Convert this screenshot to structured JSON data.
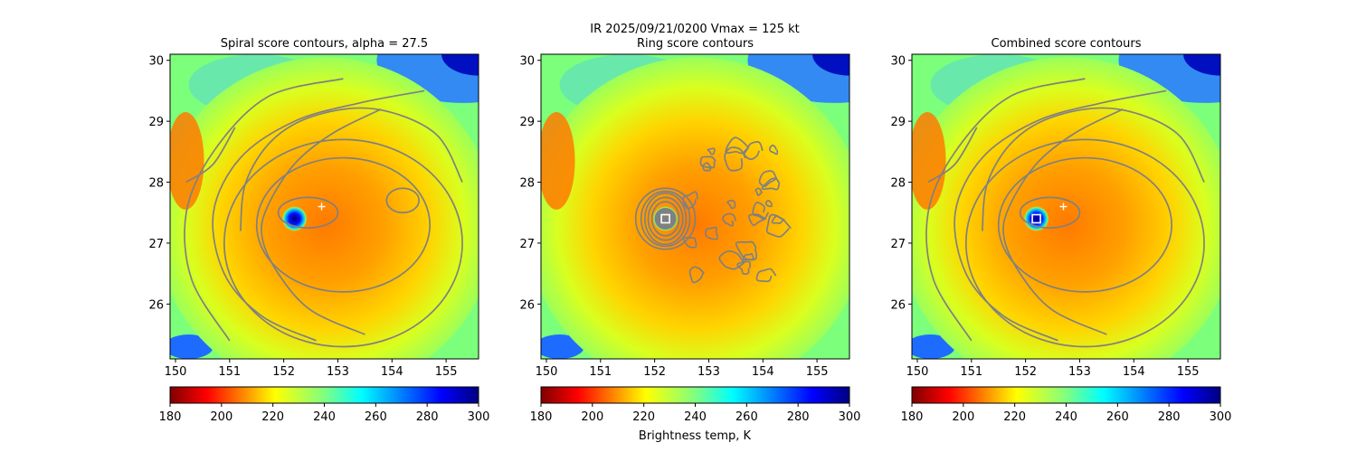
{
  "figure": {
    "suptitle": "IR  2025/09/21/0200    Vmax = 125 kt",
    "colorbar_label": "Brightness temp, K"
  },
  "chart_data": [
    {
      "type": "heatmap",
      "title": "Spiral score contours, alpha = 27.5",
      "xlim": [
        149.9,
        155.6
      ],
      "ylim": [
        25.1,
        30.1
      ],
      "xticks": [
        150,
        151,
        152,
        153,
        154,
        155
      ],
      "yticks": [
        26,
        27,
        28,
        29,
        30
      ],
      "colormap": "jet_r",
      "clim": [
        180,
        300
      ],
      "colorbar_ticks": [
        180,
        200,
        220,
        240,
        260,
        280,
        300
      ],
      "eye_center": [
        152.2,
        27.4
      ],
      "markers": [
        {
          "symbol": "plus",
          "x": 152.7,
          "y": 27.6,
          "color": "#ffffff"
        }
      ],
      "contour_color": "#808080",
      "grid": false
    },
    {
      "type": "heatmap",
      "title": "Ring score contours",
      "xlim": [
        149.9,
        155.6
      ],
      "ylim": [
        25.1,
        30.1
      ],
      "xticks": [
        150,
        151,
        152,
        153,
        154,
        155
      ],
      "yticks": [
        26,
        27,
        28,
        29,
        30
      ],
      "colormap": "jet_r",
      "clim": [
        180,
        300
      ],
      "colorbar_ticks": [
        180,
        200,
        220,
        240,
        260,
        280,
        300
      ],
      "eye_center": [
        152.2,
        27.4
      ],
      "markers": [
        {
          "symbol": "square",
          "x": 152.2,
          "y": 27.4,
          "color": "#ffffff"
        }
      ],
      "contour_color": "#808080",
      "grid": false
    },
    {
      "type": "heatmap",
      "title": "Combined score contours",
      "xlim": [
        149.9,
        155.6
      ],
      "ylim": [
        25.1,
        30.1
      ],
      "xticks": [
        150,
        151,
        152,
        153,
        154,
        155
      ],
      "yticks": [
        26,
        27,
        28,
        29,
        30
      ],
      "colormap": "jet_r",
      "clim": [
        180,
        300
      ],
      "colorbar_ticks": [
        180,
        200,
        220,
        240,
        260,
        280,
        300
      ],
      "eye_center": [
        152.2,
        27.4
      ],
      "markers": [
        {
          "symbol": "plus",
          "x": 152.7,
          "y": 27.6,
          "color": "#ffffff"
        },
        {
          "symbol": "square",
          "x": 152.2,
          "y": 27.4,
          "color": "#ffffff"
        }
      ],
      "contour_color": "#808080",
      "grid": false
    }
  ]
}
